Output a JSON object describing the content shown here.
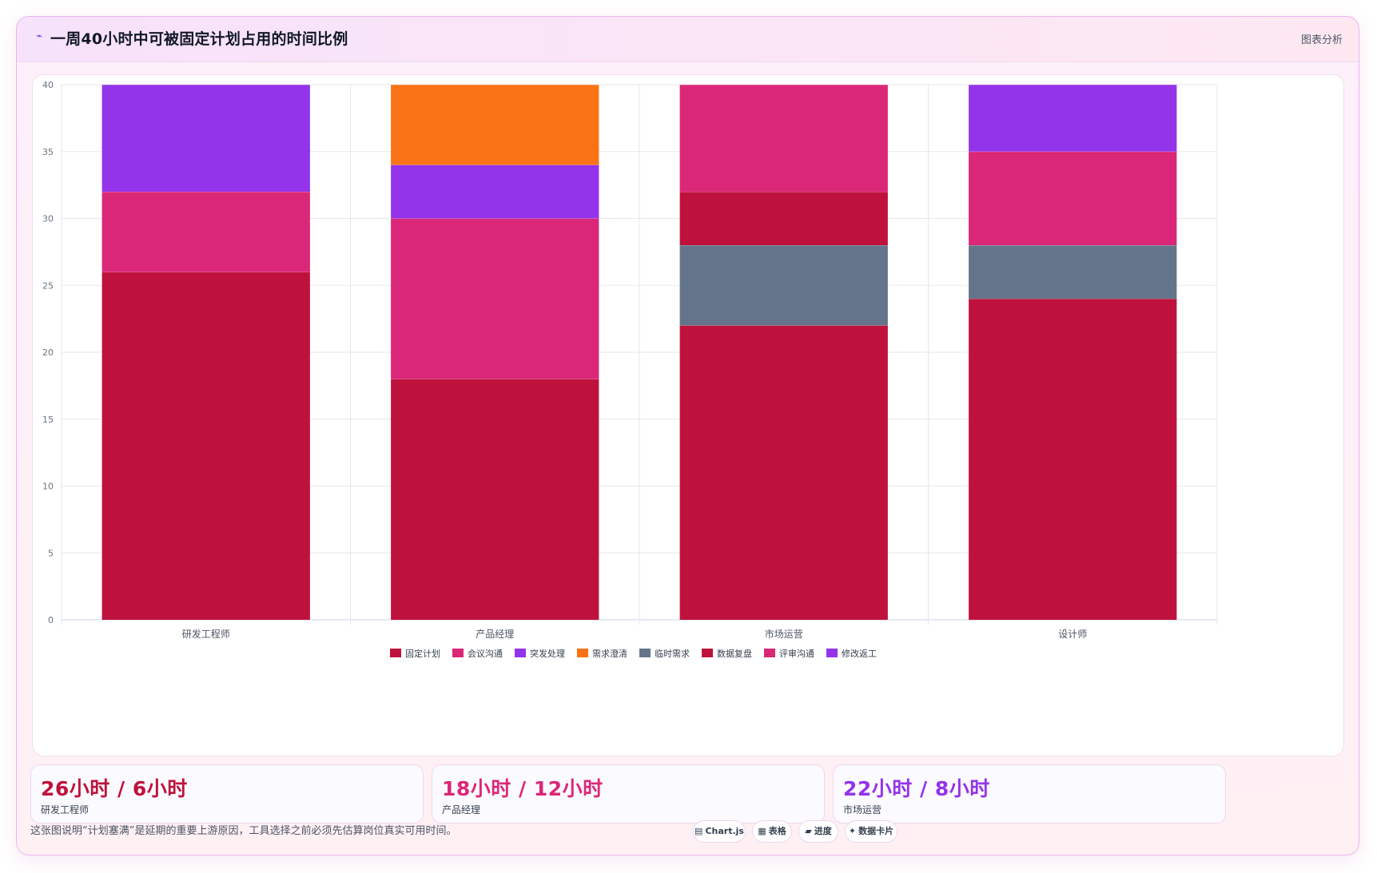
{
  "header": {
    "title": "一周40小时中可被固定计划占用的时间比例",
    "title_icon": "line-chart-icon",
    "action_label": "图表分析"
  },
  "chart_data": {
    "type": "bar",
    "stacked": true,
    "categories": [
      "研发工程师",
      "产品经理",
      "市场运营",
      "设计师"
    ],
    "ylim": [
      0,
      40
    ],
    "yticks": [
      0,
      5,
      10,
      15,
      20,
      25,
      30,
      35,
      40
    ],
    "grid": true,
    "legend_position": "bottom",
    "series": [
      {
        "name": "固定计划",
        "color": "#be123c",
        "values": [
          26,
          18,
          22,
          24
        ]
      },
      {
        "name": "会议沟通",
        "color": "#db2777",
        "values": [
          6,
          12,
          0,
          0
        ]
      },
      {
        "name": "突发处理",
        "color": "#9333ea",
        "values": [
          8,
          4,
          0,
          0
        ]
      },
      {
        "name": "需求澄清",
        "color": "#f97316",
        "values": [
          0,
          6,
          0,
          0
        ]
      },
      {
        "name": "临时需求",
        "color": "#64748b",
        "values": [
          0,
          0,
          6,
          4
        ]
      },
      {
        "name": "数据复盘",
        "color": "#be123c",
        "values": [
          0,
          0,
          4,
          0
        ]
      },
      {
        "name": "评审沟通",
        "color": "#db2777",
        "values": [
          0,
          0,
          8,
          7
        ]
      },
      {
        "name": "修改返工",
        "color": "#9333ea",
        "values": [
          0,
          0,
          0,
          5
        ]
      }
    ]
  },
  "stats": [
    {
      "value": "26小时 / 6小时",
      "label": "研发工程师",
      "color": "#be123c"
    },
    {
      "value": "18小时 / 12小时",
      "label": "产品经理",
      "color": "#db2777"
    },
    {
      "value": "22小时 / 8小时",
      "label": "市场运营",
      "color": "#9333ea"
    }
  ],
  "footnote": "这张图说明“计划塞满”是延期的重要上游原因，工具选择之前必须先估算岗位真实可用时间。",
  "chips": [
    {
      "icon": "▤",
      "icon_name": "chart-icon",
      "label": "Chart.js"
    },
    {
      "icon": "▦",
      "icon_name": "table-icon",
      "label": "表格"
    },
    {
      "icon": "▰",
      "icon_name": "progress-icon",
      "label": "进度"
    },
    {
      "icon": "✦",
      "icon_name": "sparkle-icon",
      "label": "数据卡片"
    }
  ]
}
